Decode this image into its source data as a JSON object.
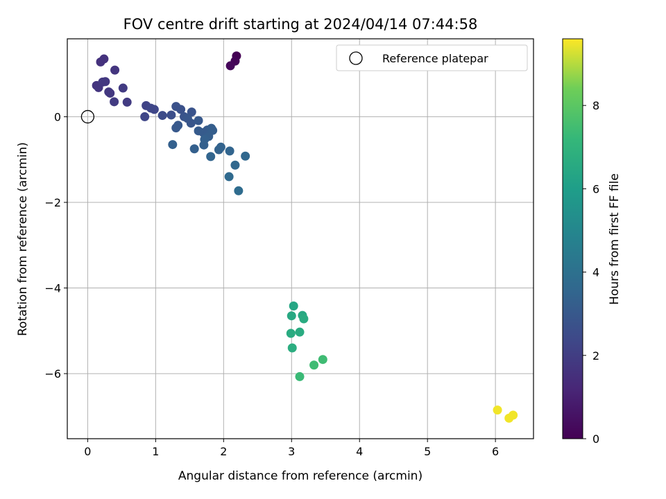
{
  "chart_data": {
    "type": "scatter",
    "title": "FOV centre drift starting at 2024/04/14 07:44:58",
    "xlabel": "Angular distance from reference (arcmin)",
    "ylabel": "Rotation from reference (arcmin)",
    "xlim": [
      -0.3,
      6.56
    ],
    "ylim": [
      -7.52,
      1.82
    ],
    "xticks": [
      0,
      1,
      2,
      3,
      4,
      5,
      6
    ],
    "yticks": [
      0,
      -2,
      -4,
      -6
    ],
    "grid": true,
    "legend": {
      "position": "top-right",
      "entries": [
        "Reference platepar"
      ]
    },
    "reference_point": {
      "x": 0,
      "y": 0,
      "marker": "open-circle"
    },
    "colorbar": {
      "label": "Hours from first FF file",
      "range": [
        0,
        9.6
      ],
      "ticks": [
        0,
        2,
        4,
        6,
        8
      ],
      "colormap": "viridis"
    },
    "points": [
      {
        "x": 2.19,
        "y": 1.42,
        "c": 0.0
      },
      {
        "x": 2.17,
        "y": 1.3,
        "c": 0.1
      },
      {
        "x": 2.1,
        "y": 1.19,
        "c": 0.2
      },
      {
        "x": 0.24,
        "y": 1.35,
        "c": 1.6
      },
      {
        "x": 0.19,
        "y": 1.28,
        "c": 1.6
      },
      {
        "x": 0.4,
        "y": 1.09,
        "c": 1.7
      },
      {
        "x": 0.13,
        "y": 0.73,
        "c": 1.7
      },
      {
        "x": 0.16,
        "y": 0.68,
        "c": 1.7
      },
      {
        "x": 0.22,
        "y": 0.81,
        "c": 1.8
      },
      {
        "x": 0.26,
        "y": 0.82,
        "c": 1.8
      },
      {
        "x": 0.31,
        "y": 0.58,
        "c": 1.8
      },
      {
        "x": 0.33,
        "y": 0.55,
        "c": 1.8
      },
      {
        "x": 0.52,
        "y": 0.67,
        "c": 1.9
      },
      {
        "x": 0.39,
        "y": 0.35,
        "c": 1.9
      },
      {
        "x": 0.58,
        "y": 0.34,
        "c": 1.9
      },
      {
        "x": 0.86,
        "y": 0.26,
        "c": 2.2
      },
      {
        "x": 0.93,
        "y": 0.2,
        "c": 2.3
      },
      {
        "x": 0.98,
        "y": 0.17,
        "c": 2.3
      },
      {
        "x": 0.84,
        "y": 0.0,
        "c": 2.3
      },
      {
        "x": 1.1,
        "y": 0.03,
        "c": 2.5
      },
      {
        "x": 1.23,
        "y": 0.04,
        "c": 2.6
      },
      {
        "x": 1.3,
        "y": 0.24,
        "c": 2.7
      },
      {
        "x": 1.37,
        "y": 0.17,
        "c": 2.7
      },
      {
        "x": 1.53,
        "y": 0.11,
        "c": 2.8
      },
      {
        "x": 1.42,
        "y": 0.0,
        "c": 2.8
      },
      {
        "x": 1.47,
        "y": -0.04,
        "c": 2.9
      },
      {
        "x": 1.52,
        "y": -0.15,
        "c": 2.9
      },
      {
        "x": 1.63,
        "y": -0.09,
        "c": 3.0
      },
      {
        "x": 1.33,
        "y": -0.2,
        "c": 3.0
      },
      {
        "x": 1.3,
        "y": -0.26,
        "c": 3.0
      },
      {
        "x": 1.63,
        "y": -0.33,
        "c": 3.1
      },
      {
        "x": 1.7,
        "y": -0.37,
        "c": 3.1
      },
      {
        "x": 1.76,
        "y": -0.31,
        "c": 3.1
      },
      {
        "x": 1.82,
        "y": -0.27,
        "c": 3.2
      },
      {
        "x": 1.84,
        "y": -0.32,
        "c": 3.2
      },
      {
        "x": 1.78,
        "y": -0.46,
        "c": 3.2
      },
      {
        "x": 1.72,
        "y": -0.53,
        "c": 3.3
      },
      {
        "x": 1.71,
        "y": -0.66,
        "c": 3.3
      },
      {
        "x": 1.25,
        "y": -0.65,
        "c": 3.3
      },
      {
        "x": 1.57,
        "y": -0.75,
        "c": 3.3
      },
      {
        "x": 1.93,
        "y": -0.77,
        "c": 3.4
      },
      {
        "x": 1.96,
        "y": -0.71,
        "c": 3.4
      },
      {
        "x": 2.09,
        "y": -0.8,
        "c": 3.5
      },
      {
        "x": 1.81,
        "y": -0.93,
        "c": 3.5
      },
      {
        "x": 2.32,
        "y": -0.92,
        "c": 3.6
      },
      {
        "x": 2.17,
        "y": -1.13,
        "c": 3.6
      },
      {
        "x": 2.08,
        "y": -1.4,
        "c": 3.7
      },
      {
        "x": 2.22,
        "y": -1.73,
        "c": 3.8
      },
      {
        "x": 3.03,
        "y": -4.42,
        "c": 6.4
      },
      {
        "x": 3.0,
        "y": -4.65,
        "c": 6.5
      },
      {
        "x": 3.16,
        "y": -4.64,
        "c": 6.5
      },
      {
        "x": 3.18,
        "y": -4.72,
        "c": 6.6
      },
      {
        "x": 2.99,
        "y": -5.06,
        "c": 6.6
      },
      {
        "x": 3.12,
        "y": -5.03,
        "c": 6.6
      },
      {
        "x": 3.01,
        "y": -5.4,
        "c": 6.7
      },
      {
        "x": 3.46,
        "y": -5.67,
        "c": 7.4
      },
      {
        "x": 3.33,
        "y": -5.8,
        "c": 7.4
      },
      {
        "x": 3.12,
        "y": -6.07,
        "c": 7.3
      },
      {
        "x": 6.03,
        "y": -6.85,
        "c": 9.5
      },
      {
        "x": 6.26,
        "y": -6.97,
        "c": 9.5
      },
      {
        "x": 6.2,
        "y": -7.04,
        "c": 9.5
      }
    ]
  }
}
